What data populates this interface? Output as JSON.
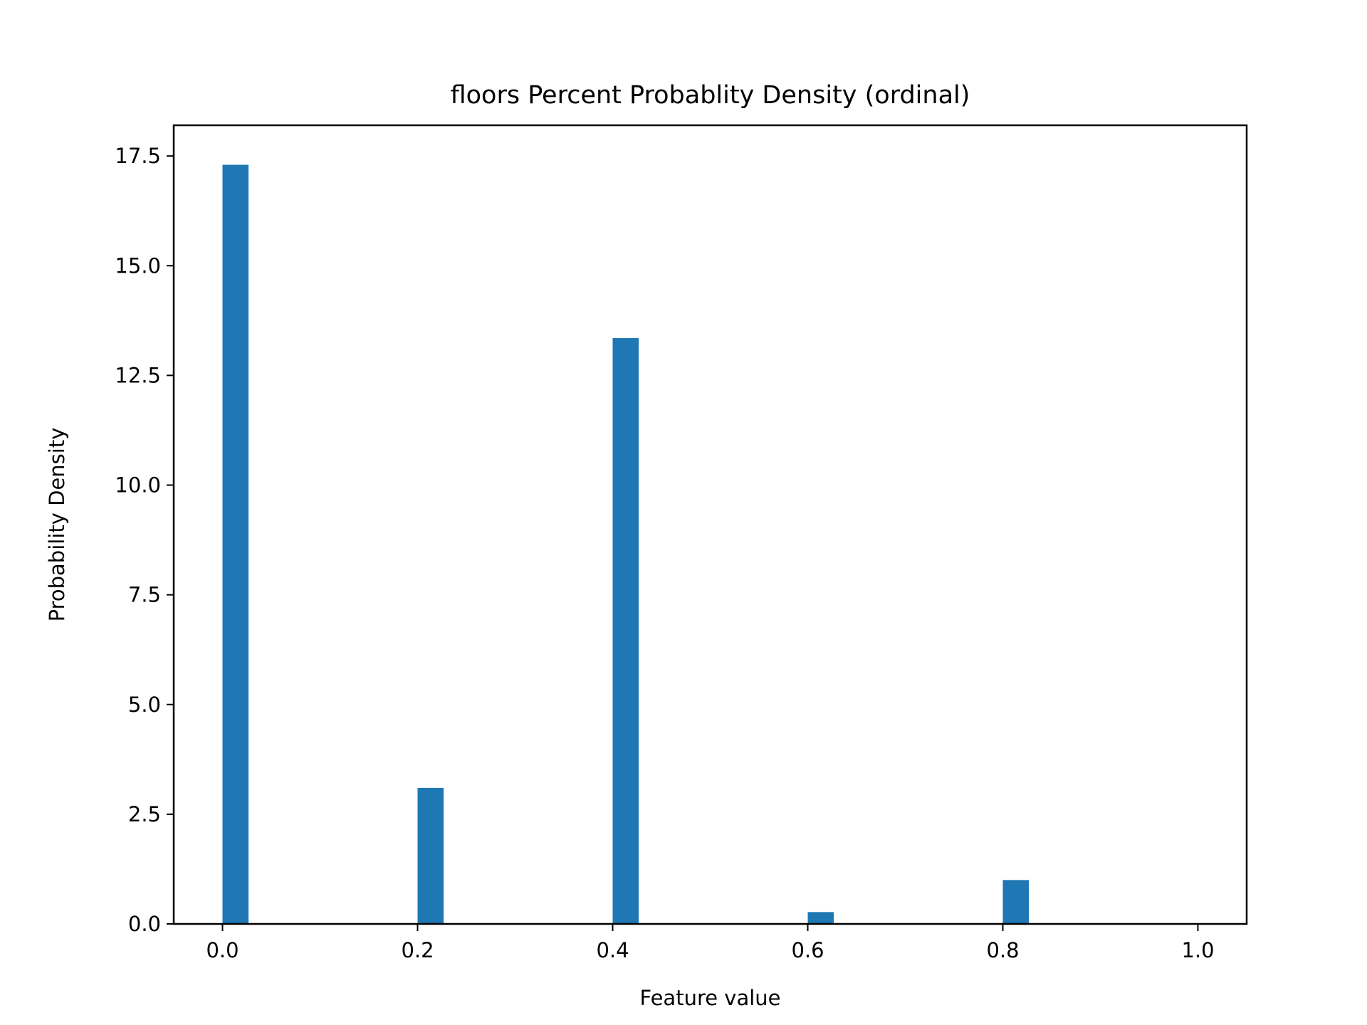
{
  "chart_data": {
    "type": "bar",
    "title": "floors Percent Probablity Density (ordinal)",
    "xlabel": "Feature value",
    "ylabel": "Probability Density",
    "xlim": [
      -0.05,
      1.05
    ],
    "ylim": [
      0,
      18.2
    ],
    "bin_width": 0.0267,
    "bars": [
      {
        "x": 0.0,
        "value": 17.3
      },
      {
        "x": 0.2,
        "value": 3.1
      },
      {
        "x": 0.4,
        "value": 13.35
      },
      {
        "x": 0.6,
        "value": 0.27
      },
      {
        "x": 0.8,
        "value": 1.0
      }
    ],
    "xticks": [
      0.0,
      0.2,
      0.4,
      0.6,
      0.8,
      1.0
    ],
    "xtick_labels": [
      "0.0",
      "0.2",
      "0.4",
      "0.6",
      "0.8",
      "1.0"
    ],
    "yticks": [
      0,
      2.5,
      5,
      7.5,
      10,
      12.5,
      15,
      17.5
    ],
    "ytick_labels": [
      "0.0",
      "2.5",
      "5.0",
      "7.5",
      "10.0",
      "12.5",
      "15.0",
      "17.5"
    ],
    "grid": false,
    "bar_color": "#1f77b4"
  }
}
